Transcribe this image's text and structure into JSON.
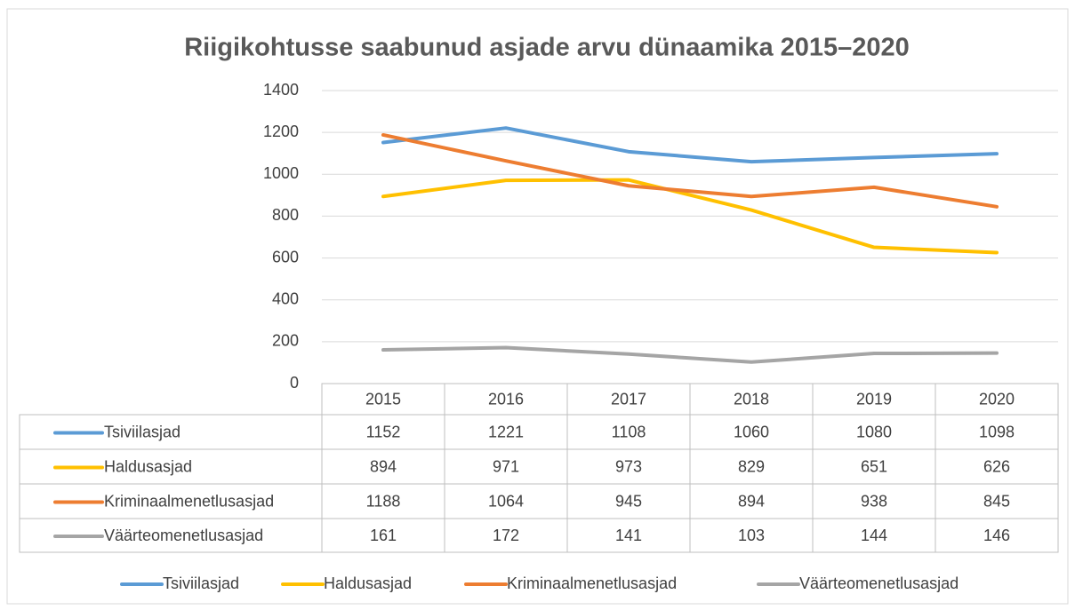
{
  "chart_data": {
    "type": "line",
    "title": "Riigikohtusse saabunud asjade arvu dünaamika 2015–2020",
    "categories": [
      "2015",
      "2016",
      "2017",
      "2018",
      "2019",
      "2020"
    ],
    "series": [
      {
        "name": "Tsiviilasjad",
        "color": "#5b9bd5",
        "values": [
          1152,
          1221,
          1108,
          1060,
          1080,
          1098
        ]
      },
      {
        "name": "Haldusasjad",
        "color": "#ffc000",
        "values": [
          894,
          971,
          973,
          829,
          651,
          626
        ]
      },
      {
        "name": "Kriminaalmenetlusasjad",
        "color": "#ed7d31",
        "values": [
          1188,
          1064,
          945,
          894,
          938,
          845
        ]
      },
      {
        "name": "Väärteomenetlusasjad",
        "color": "#a5a5a5",
        "values": [
          161,
          172,
          141,
          103,
          144,
          146
        ]
      }
    ],
    "ylim": [
      0,
      1400
    ],
    "yticks": [
      0,
      200,
      400,
      600,
      800,
      1000,
      1200,
      1400
    ],
    "grid": true,
    "legend": "bottom"
  }
}
